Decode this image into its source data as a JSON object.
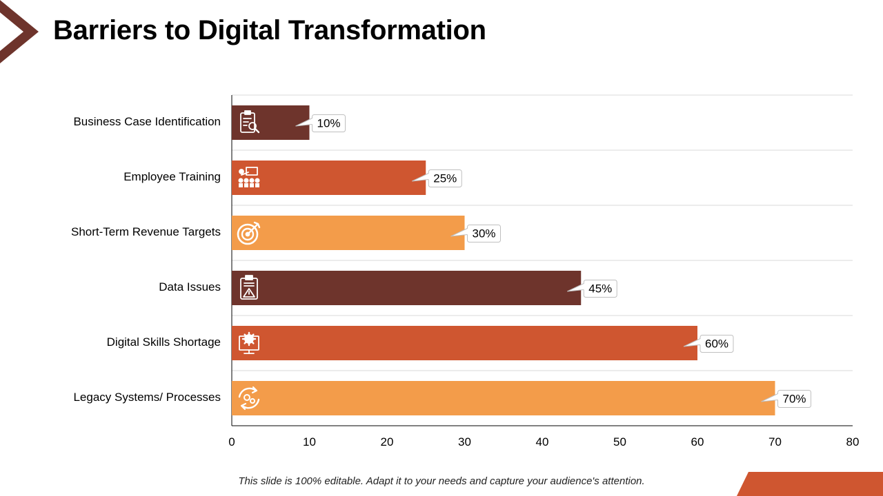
{
  "slide": {
    "title": "Barriers to Digital Transformation",
    "footer": "This slide is 100% editable. Adapt it to your needs and capture your audience's attention."
  },
  "colors": {
    "dark_brown": "#6E342C",
    "rust": "#CF5630",
    "orange": "#F39C4A",
    "grid": "#D9D9D9",
    "axis": "#000000"
  },
  "chart_data": {
    "type": "bar",
    "orientation": "horizontal",
    "title": "Barriers to Digital Transformation",
    "xlabel": "",
    "ylabel": "",
    "xlim": [
      0,
      80
    ],
    "xticks": [
      0,
      10,
      20,
      30,
      40,
      50,
      60,
      70,
      80
    ],
    "grid": "horizontal separators",
    "legend": "none",
    "categories": [
      "Business Case Identification",
      "Employee Training",
      "Short-Term Revenue Targets",
      "Data Issues",
      "Digital Skills Shortage",
      "Legacy Systems/ Processes"
    ],
    "values": [
      10,
      25,
      30,
      45,
      60,
      70
    ],
    "data_labels": [
      "10%",
      "25%",
      "30%",
      "45%",
      "60%",
      "70%"
    ],
    "bar_colors": [
      "#6E342C",
      "#CF5630",
      "#F39C4A",
      "#6E342C",
      "#CF5630",
      "#F39C4A"
    ],
    "icons": [
      "clipboard-search-icon",
      "training-presentation-icon",
      "target-arrow-icon",
      "clipboard-warning-icon",
      "monitor-gear-icon",
      "cycle-gears-icon"
    ]
  }
}
